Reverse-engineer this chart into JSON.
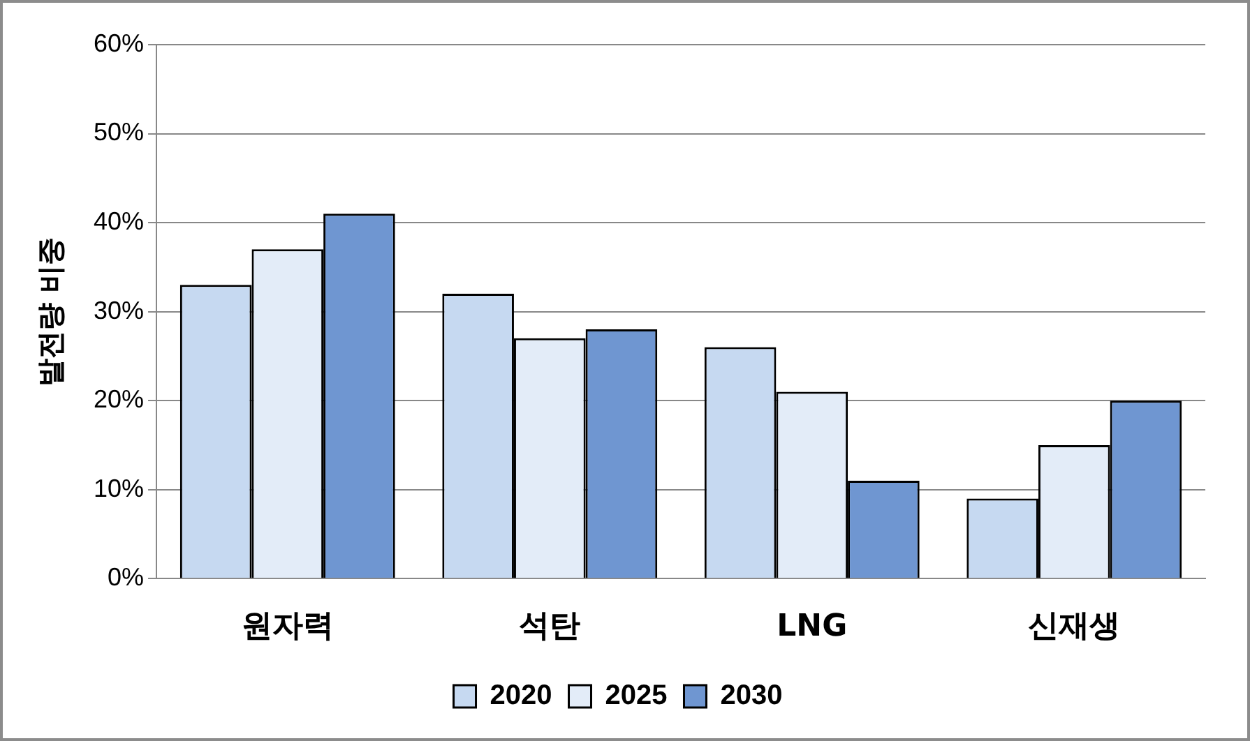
{
  "chart_data": {
    "type": "bar",
    "ylabel": "발전량 비중",
    "categories": [
      "원자력",
      "석탄",
      "LNG",
      "신재생"
    ],
    "series": [
      {
        "name": "2020",
        "color": "#c6d9f1",
        "values": [
          33,
          32,
          26,
          9
        ]
      },
      {
        "name": "2025",
        "color": "#e3ecf8",
        "values": [
          37,
          27,
          21,
          15
        ]
      },
      {
        "name": "2030",
        "color": "#6f96d1",
        "values": [
          41,
          28,
          11,
          20
        ]
      }
    ],
    "ylim": [
      0,
      60
    ],
    "yticks": [
      {
        "value": 0,
        "label": "0%"
      },
      {
        "value": 10,
        "label": "10%"
      },
      {
        "value": 20,
        "label": "20%"
      },
      {
        "value": 30,
        "label": "30%"
      },
      {
        "value": 40,
        "label": "40%"
      },
      {
        "value": 50,
        "label": "50%"
      },
      {
        "value": 60,
        "label": "60%"
      }
    ],
    "grid": "y",
    "legend": "bottom"
  }
}
